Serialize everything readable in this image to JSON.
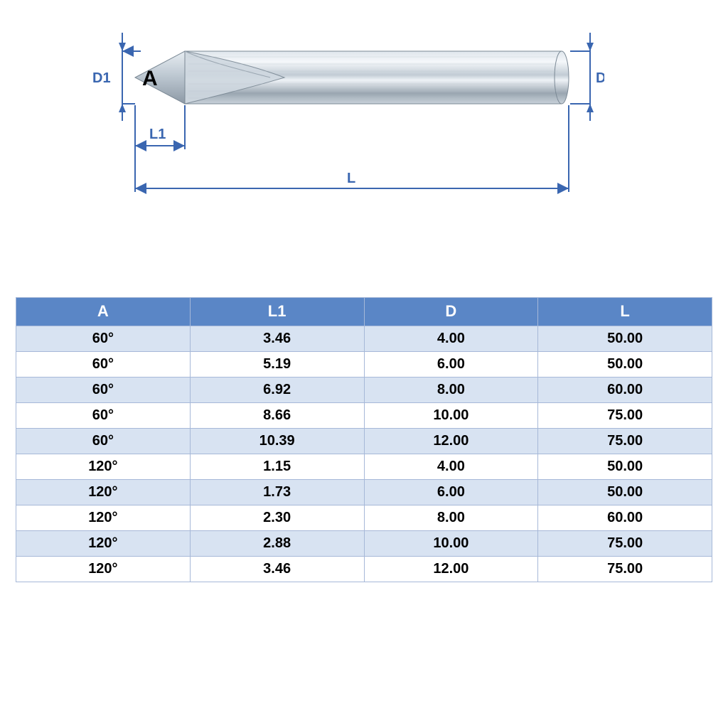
{
  "diagram": {
    "labels": {
      "D1": "D1",
      "A": "A",
      "D": "D",
      "L1": "L1",
      "L": "L"
    },
    "dim_color": "#3a66b0",
    "arrow_color": "#3a66b0",
    "label_fontsize": 20,
    "letter_A_fontsize": 30,
    "tool_body": {
      "shank_color_light": "#f6f8fa",
      "shank_color_mid": "#c5ced6",
      "shank_color_dark": "#8a97a3",
      "flute_edge": "#7a8894"
    }
  },
  "table": {
    "columns": [
      "A",
      "L1",
      "D",
      "L"
    ],
    "rows": [
      [
        "60°",
        "3.46",
        "4.00",
        "50.00"
      ],
      [
        "60°",
        "5.19",
        "6.00",
        "50.00"
      ],
      [
        "60°",
        "6.92",
        "8.00",
        "60.00"
      ],
      [
        "60°",
        "8.66",
        "10.00",
        "75.00"
      ],
      [
        "60°",
        "10.39",
        "12.00",
        "75.00"
      ],
      [
        "120°",
        "1.15",
        "4.00",
        "50.00"
      ],
      [
        "120°",
        "1.73",
        "6.00",
        "50.00"
      ],
      [
        "120°",
        "2.30",
        "8.00",
        "60.00"
      ],
      [
        "120°",
        "2.88",
        "10.00",
        "75.00"
      ],
      [
        "120°",
        "3.46",
        "12.00",
        "75.00"
      ]
    ],
    "header_bg": "#5a86c6",
    "header_fg": "#ffffff",
    "row_alt_bg": "#d8e3f2",
    "row_bg": "#ffffff",
    "border_color": "#a6b8d8",
    "font_weight": "bold",
    "header_fontsize": 22,
    "cell_fontsize": 20
  }
}
